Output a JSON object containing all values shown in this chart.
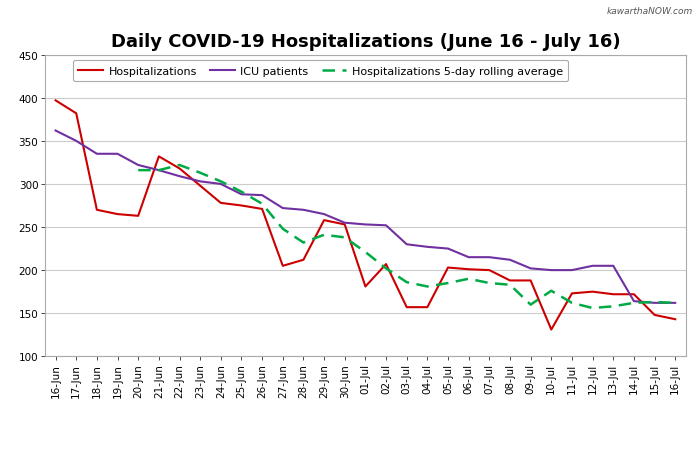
{
  "title": "Daily COVID-19 Hospitalizations (June 16 - July 16)",
  "watermark": "kawarthaNOW.com",
  "dates": [
    "16-Jun",
    "17-Jun",
    "18-Jun",
    "19-Jun",
    "20-Jun",
    "21-Jun",
    "22-Jun",
    "23-Jun",
    "24-Jun",
    "25-Jun",
    "26-Jun",
    "27-Jun",
    "28-Jun",
    "29-Jun",
    "30-Jun",
    "01-Jul",
    "02-Jul",
    "03-Jul",
    "04-Jul",
    "05-Jul",
    "06-Jul",
    "07-Jul",
    "08-Jul",
    "09-Jul",
    "10-Jul",
    "11-Jul",
    "12-Jul",
    "13-Jul",
    "14-Jul",
    "15-Jul",
    "16-Jul"
  ],
  "hosp": [
    397,
    382,
    270,
    265,
    263,
    332,
    318,
    298,
    278,
    275,
    271,
    205,
    212,
    258,
    253,
    181,
    207,
    157,
    157,
    203,
    201,
    200,
    188,
    188,
    131,
    173,
    175,
    172,
    172,
    148,
    143
  ],
  "icu": [
    362,
    350,
    335,
    335,
    322,
    316,
    309,
    303,
    300,
    288,
    287,
    272,
    270,
    265,
    255,
    253,
    252,
    230,
    227,
    225,
    215,
    215,
    212,
    202,
    200,
    200,
    205,
    205,
    164,
    162,
    162
  ],
  "rolling_avg": [
    null,
    null,
    null,
    null,
    316,
    316,
    322,
    313,
    303,
    291,
    277,
    248,
    232,
    241,
    238,
    221,
    202,
    186,
    181,
    185,
    190,
    185,
    183,
    160,
    176,
    162,
    156,
    158,
    162,
    163,
    162
  ],
  "hosp_color": "#cc0000",
  "icu_color": "#7030a0",
  "rolling_color": "#00aa44",
  "legend_hosp": "Hospitalizations",
  "legend_icu": "ICU patients",
  "legend_rolling": "Hospitalizations 5-day rolling average",
  "ylim": [
    100,
    450
  ],
  "yticks": [
    100,
    150,
    200,
    250,
    300,
    350,
    400,
    450
  ],
  "bg_color": "#ffffff",
  "grid_color": "#cccccc",
  "title_fontsize": 13,
  "tick_fontsize": 7.5,
  "legend_fontsize": 8
}
